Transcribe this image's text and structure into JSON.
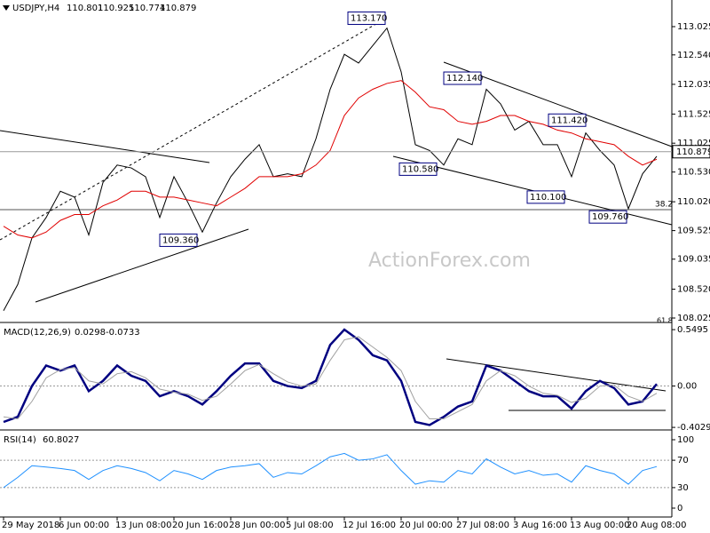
{
  "chart_data": [
    {
      "type": "line",
      "title": "USDJPY,H4",
      "ohlc": [
        110.801,
        110.925,
        110.774,
        110.879
      ],
      "ylim": [
        107.964,
        113.482
      ],
      "yticks": [
        113.025,
        {
          "value": 112.54,
          "label": "112.540"
        },
        112.035,
        111.525,
        111.025,
        {
          "value": 110.53,
          "label": "110.530"
        },
        {
          "value": 110.02,
          "label": "110.020"
        },
        109.525,
        109.035,
        {
          "value": 108.52,
          "label": "108.520"
        },
        108.025
      ],
      "series": [
        {
          "name": "Close",
          "color": "#000000",
          "values": [
            108.15,
            108.6,
            109.4,
            109.75,
            110.2,
            110.1,
            109.45,
            110.35,
            110.65,
            110.6,
            110.45,
            109.75,
            110.45,
            110.0,
            109.5,
            110.0,
            110.45,
            110.75,
            111.0,
            110.45,
            110.5,
            110.45,
            111.1,
            111.95,
            112.55,
            112.4,
            112.7,
            113.0,
            112.25,
            111.0,
            110.9,
            110.65,
            111.1,
            111.0,
            111.95,
            111.7,
            111.25,
            111.4,
            111.0,
            111.0,
            110.45,
            111.2,
            110.9,
            110.65,
            109.9,
            110.5,
            110.8
          ]
        },
        {
          "name": "MA",
          "color": "#e00000",
          "values": [
            109.6,
            109.45,
            109.4,
            109.5,
            109.7,
            109.8,
            109.8,
            109.95,
            110.05,
            110.2,
            110.2,
            110.1,
            110.1,
            110.05,
            110.0,
            109.95,
            110.1,
            110.25,
            110.45,
            110.45,
            110.45,
            110.5,
            110.65,
            110.9,
            111.5,
            111.8,
            111.95,
            112.05,
            112.1,
            111.9,
            111.65,
            111.6,
            111.4,
            111.35,
            111.4,
            111.5,
            111.5,
            111.4,
            111.35,
            111.25,
            111.2,
            111.1,
            111.05,
            111.0,
            110.8,
            110.65,
            110.75
          ]
        }
      ],
      "annotations": [
        {
          "value": 113.17,
          "label": "113.170"
        },
        {
          "value": 112.14,
          "label": "112.140"
        },
        {
          "value": 111.42,
          "label": "111.420"
        },
        {
          "value": 110.58,
          "label": "110.580"
        },
        {
          "value": 110.1,
          "label": "110.100"
        },
        {
          "value": 109.36,
          "label": "109.360"
        },
        {
          "value": 109.76,
          "label": "109.760"
        }
      ],
      "fib_labels": [
        "38.2",
        "61.8"
      ],
      "watermark": "ActionForex.com"
    },
    {
      "type": "line",
      "title": "MACD(12,26,9)",
      "readout": [
        0.0298,
        -0.0733
      ],
      "ylim": [
        -0.428,
        0.602
      ],
      "yticks": [
        0.5495,
        {
          "value": 0,
          "label": "0.00"
        },
        -0.4029
      ],
      "series": [
        {
          "name": "MACD",
          "color": "#000080",
          "values": [
            -0.35,
            -0.3,
            0,
            0.2,
            0.15,
            0.2,
            -0.05,
            0.05,
            0.2,
            0.1,
            0.05,
            -0.1,
            -0.05,
            -0.1,
            -0.18,
            -0.05,
            0.1,
            0.22,
            0.22,
            0.05,
            0,
            -0.02,
            0.05,
            0.4,
            0.55,
            0.45,
            0.3,
            0.25,
            0.05,
            -0.35,
            -0.38,
            -0.3,
            -0.2,
            -0.15,
            0.2,
            0.15,
            0.05,
            -0.05,
            -0.1,
            -0.1,
            -0.22,
            -0.05,
            0.05,
            -0.02,
            -0.18,
            -0.15,
            0.02
          ]
        },
        {
          "name": "Signal",
          "color": "#a0a0a0",
          "values": [
            -0.3,
            -0.32,
            -0.15,
            0.08,
            0.16,
            0.18,
            0.05,
            0.02,
            0.12,
            0.14,
            0.08,
            -0.03,
            -0.06,
            -0.08,
            -0.14,
            -0.1,
            0.02,
            0.15,
            0.21,
            0.12,
            0.04,
            0,
            0.02,
            0.25,
            0.45,
            0.48,
            0.38,
            0.28,
            0.15,
            -0.15,
            -0.32,
            -0.32,
            -0.25,
            -0.18,
            0.05,
            0.15,
            0.1,
            0,
            -0.07,
            -0.09,
            -0.16,
            -0.12,
            0,
            0.01,
            -0.1,
            -0.15,
            -0.07
          ]
        }
      ]
    },
    {
      "type": "line",
      "title": "RSI(14)",
      "readout": [
        60.8027
      ],
      "ylim": [
        -10.4,
        111.7
      ],
      "yticks": [
        100,
        70,
        30,
        0
      ],
      "categories": [
        "29 May 2018",
        null,
        null,
        null,
        "6 Jun 00:00",
        null,
        null,
        null,
        "13 Jun 08:00",
        null,
        null,
        null,
        "20 Jun 16:00",
        null,
        null,
        null,
        "28 Jun 00:00",
        null,
        null,
        null,
        "5 Jul 08:00",
        null,
        null,
        null,
        "12 Jul 16:00",
        null,
        null,
        null,
        "20 Jul 00:00",
        null,
        null,
        null,
        "27 Jul 08:00",
        null,
        null,
        null,
        "3 Aug 16:00",
        null,
        null,
        null,
        "13 Aug 00:00",
        null,
        null,
        null,
        "20 Aug 08:00",
        null,
        null
      ],
      "series": [
        {
          "name": "RSI",
          "color": "#1e90ff",
          "values": [
            30,
            45,
            62,
            60,
            58,
            55,
            42,
            55,
            62,
            58,
            52,
            40,
            55,
            50,
            42,
            55,
            60,
            62,
            65,
            45,
            52,
            50,
            62,
            75,
            80,
            70,
            72,
            78,
            55,
            35,
            40,
            38,
            55,
            50,
            72,
            60,
            50,
            55,
            48,
            50,
            38,
            62,
            55,
            50,
            35,
            55,
            60.8
          ]
        }
      ]
    }
  ]
}
